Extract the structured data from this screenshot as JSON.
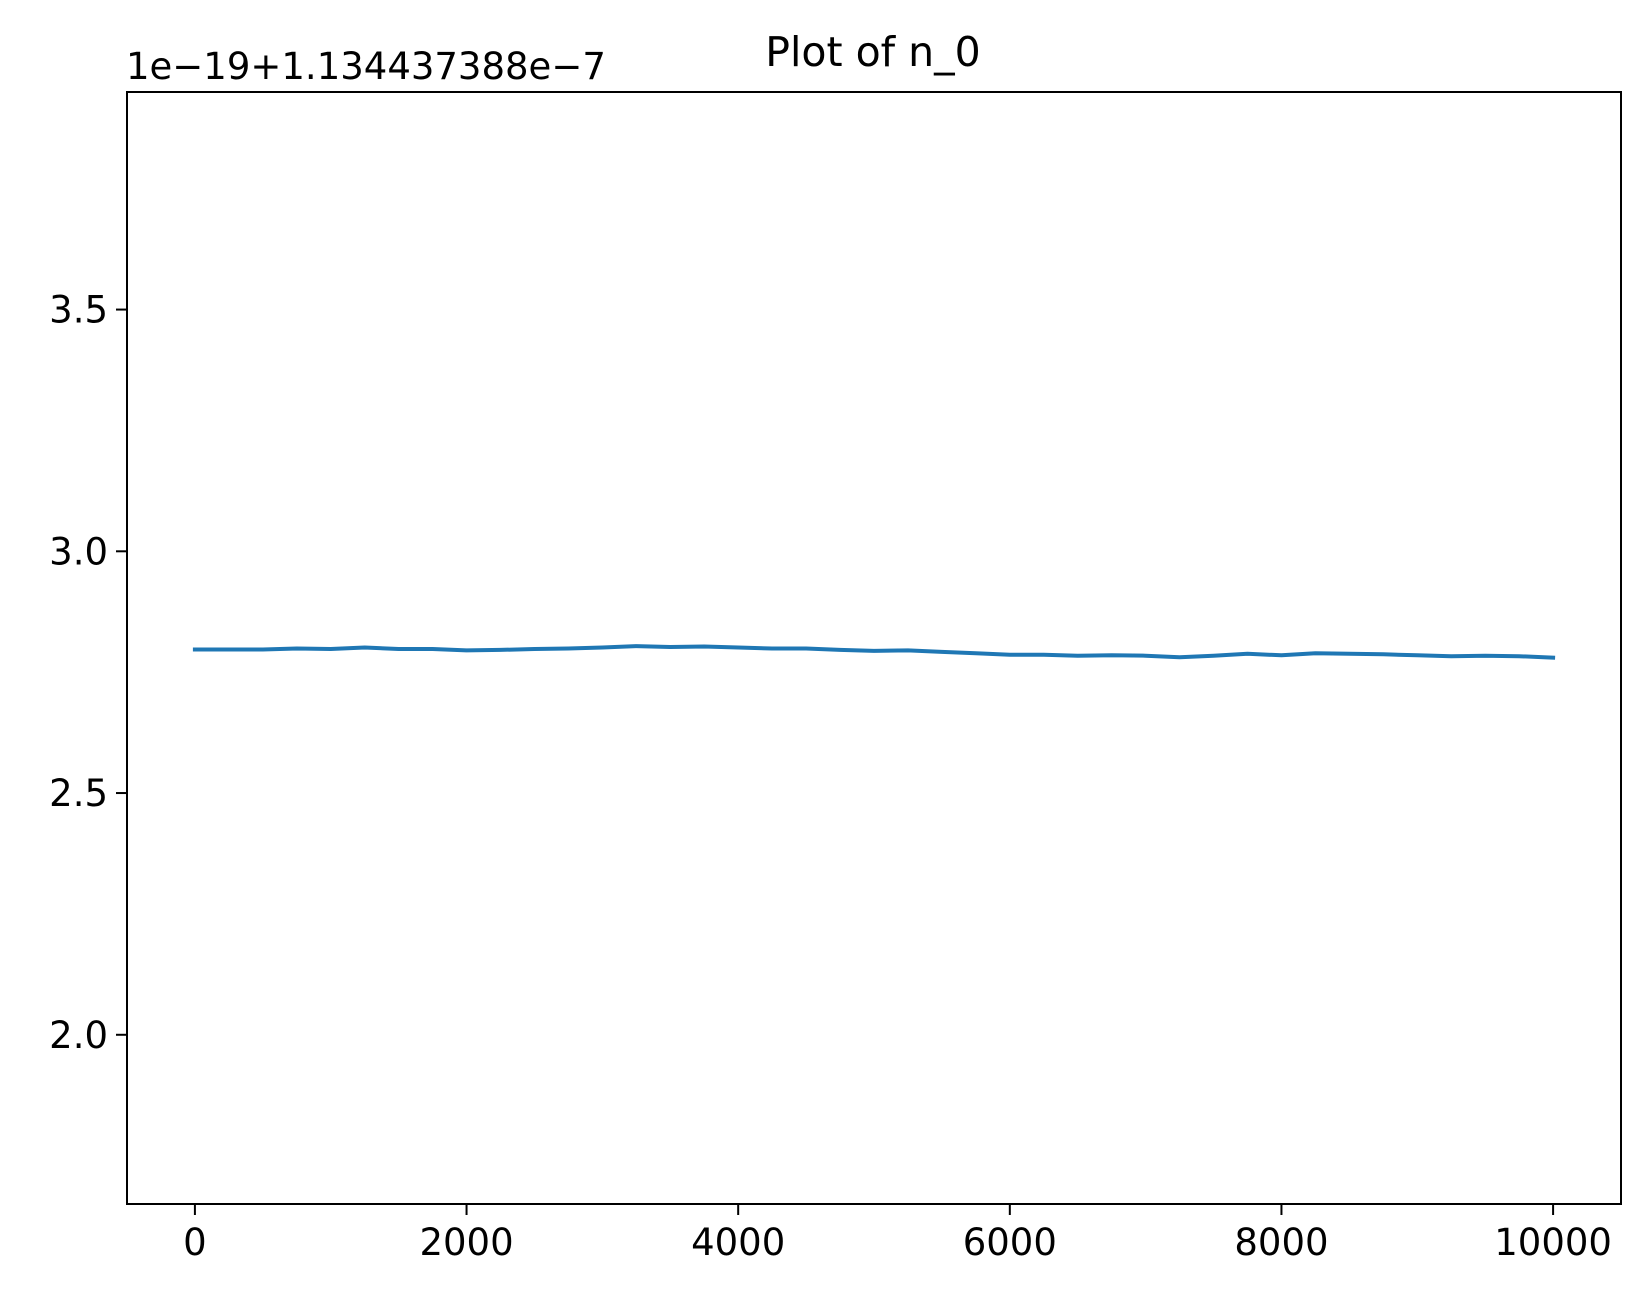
{
  "chart_data": {
    "type": "line",
    "title": "Plot of n_0",
    "offset_label": "1e−19+1.134437388e−7",
    "xlabel": "",
    "ylabel": "",
    "xlim": [
      -500,
      10500
    ],
    "ylim": [
      1.65,
      3.95
    ],
    "xticks": [
      0,
      2000,
      4000,
      6000,
      8000,
      10000
    ],
    "xtick_labels": [
      "0",
      "2000",
      "4000",
      "6000",
      "8000",
      "10000"
    ],
    "yticks": [
      2.0,
      2.5,
      3.0,
      3.5
    ],
    "ytick_labels": [
      "2.0",
      "2.5",
      "3.0",
      "3.5"
    ],
    "grid": false,
    "legend": "none",
    "series": [
      {
        "color": "#1f77b4",
        "x": [
          0,
          250,
          500,
          750,
          1000,
          1250,
          1500,
          1750,
          2000,
          2250,
          2500,
          2750,
          3000,
          3250,
          3500,
          3750,
          4000,
          4250,
          4500,
          4750,
          5000,
          5250,
          5500,
          5750,
          6000,
          6250,
          6500,
          6750,
          7000,
          7250,
          7500,
          7750,
          8000,
          8250,
          8500,
          8750,
          9000,
          9250,
          9500,
          9750,
          10000
        ],
        "values": [
          2.797,
          2.797,
          2.797,
          2.799,
          2.798,
          2.801,
          2.798,
          2.798,
          2.795,
          2.796,
          2.798,
          2.799,
          2.801,
          2.804,
          2.802,
          2.803,
          2.801,
          2.799,
          2.799,
          2.796,
          2.794,
          2.795,
          2.792,
          2.789,
          2.786,
          2.786,
          2.784,
          2.785,
          2.784,
          2.781,
          2.784,
          2.788,
          2.785,
          2.789,
          2.788,
          2.787,
          2.785,
          2.783,
          2.784,
          2.783,
          2.78
        ]
      }
    ]
  }
}
